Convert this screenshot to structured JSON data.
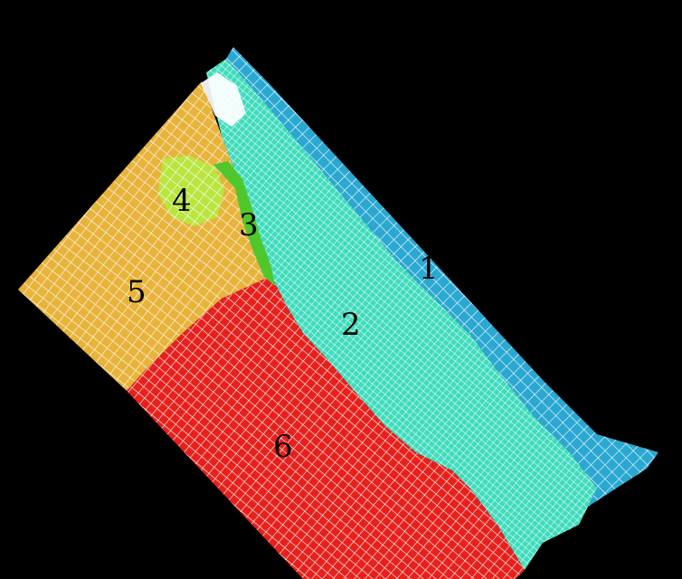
{
  "diagram": {
    "background_color": "#000000",
    "mesh_line_color": "#ffffff",
    "regions": [
      {
        "id": "1",
        "label": "1",
        "color": "#2aa8d2"
      },
      {
        "id": "2",
        "label": "2",
        "color": "#3fdcbc"
      },
      {
        "id": "3",
        "label": "3",
        "color": "#4fc72c"
      },
      {
        "id": "4",
        "label": "4",
        "color": "#b9e53f"
      },
      {
        "id": "5",
        "label": "5",
        "color": "#e8b33a"
      },
      {
        "id": "6",
        "label": "6",
        "color": "#e8201c"
      }
    ]
  }
}
